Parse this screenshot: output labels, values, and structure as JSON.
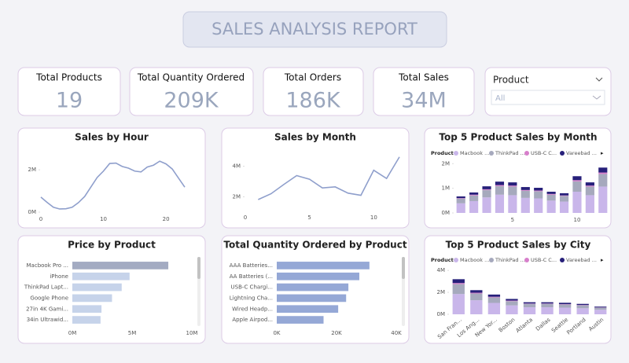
{
  "title": "SALES ANALYSIS REPORT",
  "kpis": [
    {
      "label": "Total Products",
      "value": "19"
    },
    {
      "label": "Total Quantity Ordered",
      "value": "209K"
    },
    {
      "label": "Total Orders",
      "value": "186K"
    },
    {
      "label": "Total Sales",
      "value": "34M"
    }
  ],
  "filter": {
    "label": "Product",
    "selected": "All"
  },
  "chart_data": [
    {
      "type": "line",
      "title": "Sales by Hour",
      "color": "#8f9fcc",
      "x": [
        0,
        1,
        2,
        3,
        4,
        5,
        6,
        7,
        8,
        9,
        10,
        11,
        12,
        13,
        14,
        15,
        16,
        17,
        18,
        19,
        20,
        21,
        22,
        23
      ],
      "values": [
        0.71,
        0.46,
        0.23,
        0.15,
        0.16,
        0.23,
        0.45,
        0.74,
        1.19,
        1.64,
        1.94,
        2.3,
        2.32,
        2.16,
        2.08,
        1.94,
        1.9,
        2.13,
        2.22,
        2.41,
        2.28,
        2.04,
        1.61,
        1.18
      ],
      "xlim": [
        0,
        23
      ],
      "xticks": [
        0,
        10,
        20
      ],
      "ylim": [
        0,
        2.6
      ],
      "yticks": [
        {
          "value": 0,
          "label": "0M"
        },
        {
          "value": 2,
          "label": "2M"
        }
      ]
    },
    {
      "type": "line",
      "title": "Sales by Month",
      "color": "#8f9fcc",
      "x": [
        1,
        2,
        3,
        4,
        5,
        6,
        7,
        8,
        9,
        10,
        11,
        12
      ],
      "values": [
        1.82,
        2.2,
        2.81,
        3.39,
        3.15,
        2.58,
        2.65,
        2.24,
        2.1,
        3.74,
        3.2,
        4.61
      ],
      "xlim": [
        0,
        12
      ],
      "xticks": [
        0,
        5,
        10
      ],
      "ylim": [
        1.1,
        4.7
      ],
      "yticks": [
        {
          "value": 2,
          "label": "2M"
        },
        {
          "value": 4,
          "label": "4M"
        }
      ]
    },
    {
      "type": "stacked_bar",
      "title": "Top 5 Product Sales by Month",
      "legend_title": "Product",
      "x": [
        1,
        2,
        3,
        4,
        5,
        6,
        7,
        8,
        9,
        10,
        11,
        12
      ],
      "series": [
        {
          "name": "Macbook ...",
          "color": "#c9b6ea",
          "values": [
            0.39,
            0.48,
            0.63,
            0.74,
            0.72,
            0.61,
            0.59,
            0.5,
            0.46,
            0.86,
            0.72,
            1.07
          ]
        },
        {
          "name": "ThinkPad ...",
          "color": "#a6a9bd",
          "values": [
            0.19,
            0.23,
            0.3,
            0.35,
            0.35,
            0.29,
            0.29,
            0.24,
            0.23,
            0.42,
            0.35,
            0.51
          ]
        },
        {
          "name": "USB-C C...",
          "color": "#d77fcb",
          "values": [
            0.02,
            0.03,
            0.03,
            0.04,
            0.04,
            0.03,
            0.03,
            0.03,
            0.02,
            0.05,
            0.04,
            0.06
          ]
        },
        {
          "name": "Vareebad ...",
          "color": "#27207a",
          "values": [
            0.07,
            0.09,
            0.12,
            0.14,
            0.13,
            0.12,
            0.11,
            0.09,
            0.09,
            0.16,
            0.13,
            0.2
          ]
        }
      ],
      "xlim": [
        0.5,
        12.5
      ],
      "xticks": [
        5,
        10
      ],
      "ylim": [
        0,
        2.2
      ],
      "yticks": [
        {
          "value": 0,
          "label": "0M"
        },
        {
          "value": 1,
          "label": "1M"
        },
        {
          "value": 2,
          "label": "2M"
        }
      ]
    },
    {
      "type": "hbar",
      "title": "Price by Product",
      "categories": [
        "Macbook Pro ...",
        "iPhone",
        "ThinkPad Lapt...",
        "Google Phone",
        "27in 4K Gami...",
        "34in Ultrawid..."
      ],
      "values": [
        8.03,
        4.79,
        4.13,
        3.32,
        2.44,
        2.36
      ],
      "colors": [
        "#a3abc2",
        "#c6d3ea",
        "#c6d3ea",
        "#c6d3ea",
        "#c6d3ea",
        "#c6d3ea"
      ],
      "xlim": [
        0,
        10
      ],
      "xticks": [
        {
          "value": 0,
          "label": "0M"
        },
        {
          "value": 5,
          "label": "5M"
        },
        {
          "value": 10,
          "label": "10M"
        }
      ]
    },
    {
      "type": "hbar",
      "title": "Total Quantity Ordered by Product",
      "categories": [
        "AAA Batteries...",
        "AA Batteries (...",
        "USB-C Chargi...",
        "Lightning Cha...",
        "Wired Headp...",
        "Apple Airpod..."
      ],
      "values": [
        31017,
        27635,
        23975,
        23217,
        20557,
        15661
      ],
      "colors": [
        "#95a8d6",
        "#95a8d6",
        "#95a8d6",
        "#95a8d6",
        "#95a8d6",
        "#95a8d6"
      ],
      "xlim": [
        0,
        40000
      ],
      "xticks": [
        {
          "value": 0,
          "label": "0K"
        },
        {
          "value": 20000,
          "label": "20K"
        },
        {
          "value": 40000,
          "label": "40K"
        }
      ]
    },
    {
      "type": "stacked_bar",
      "title": "Top 5 Product Sales by City",
      "legend_title": "Product",
      "categories": [
        "San Fran...",
        "Los Ang...",
        "New Yor...",
        "Boston",
        "Atlanta",
        "Dallas",
        "Seattle",
        "Portland",
        "Austin"
      ],
      "series": [
        {
          "name": "Macbook ...",
          "color": "#c9b6ea",
          "values": [
            1.85,
            1.28,
            1.04,
            0.81,
            0.64,
            0.64,
            0.61,
            0.55,
            0.41
          ]
        },
        {
          "name": "ThinkPad ...",
          "color": "#a6a9bd",
          "values": [
            0.9,
            0.62,
            0.5,
            0.39,
            0.31,
            0.31,
            0.29,
            0.27,
            0.19
          ]
        },
        {
          "name": "USB-C C...",
          "color": "#d77fcb",
          "values": [
            0.1,
            0.07,
            0.06,
            0.05,
            0.03,
            0.03,
            0.03,
            0.03,
            0.02
          ]
        },
        {
          "name": "Vareebad ...",
          "color": "#27207a",
          "values": [
            0.35,
            0.23,
            0.2,
            0.15,
            0.12,
            0.12,
            0.12,
            0.1,
            0.08
          ]
        }
      ],
      "ylim": [
        0,
        4.3
      ],
      "yticks": [
        {
          "value": 0,
          "label": "0M"
        },
        {
          "value": 2,
          "label": "2M"
        },
        {
          "value": 4,
          "label": "4M"
        }
      ]
    }
  ]
}
